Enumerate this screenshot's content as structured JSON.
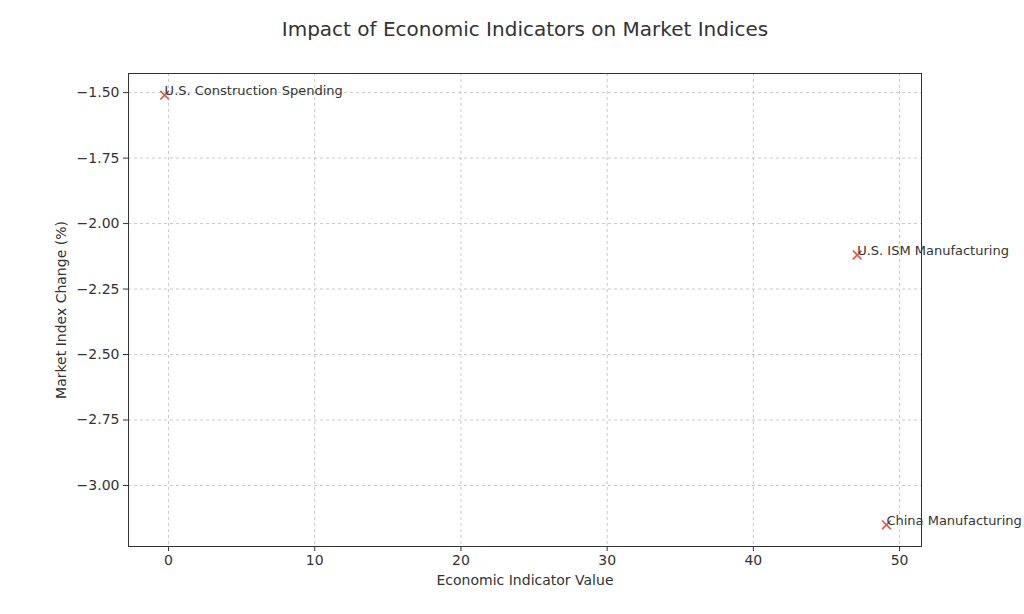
{
  "chart_data": {
    "type": "scatter",
    "title": "Impact of Economic Indicators on Market Indices",
    "x_label": "Economic Indicator Value",
    "y_label": "Market Index Change (%)",
    "x": [
      -0.27,
      47.1,
      49.1
    ],
    "values": [
      -1.51,
      -2.12,
      -3.15
    ],
    "annotations": [
      "U.S. Construction Spending",
      "U.S. ISM Manufacturing",
      "China Manufacturing"
    ],
    "color": "#e5533c",
    "marker": "x",
    "xlim": [
      -2.74,
      51.5
    ],
    "ylim": [
      -3.233,
      -1.427
    ],
    "xticks": [
      0,
      10,
      20,
      30,
      40,
      50
    ],
    "yticks": [
      {
        "value": -3.0,
        "label": "−3.00"
      },
      {
        "value": -2.75,
        "label": "−2.75"
      },
      {
        "value": -2.5,
        "label": "−2.50"
      },
      {
        "value": -2.25,
        "label": "−2.25"
      },
      {
        "value": -2.0,
        "label": "−2.00"
      },
      {
        "value": -1.75,
        "label": "−1.75"
      },
      {
        "value": -1.5,
        "label": "−1.50"
      }
    ],
    "grid": true
  }
}
